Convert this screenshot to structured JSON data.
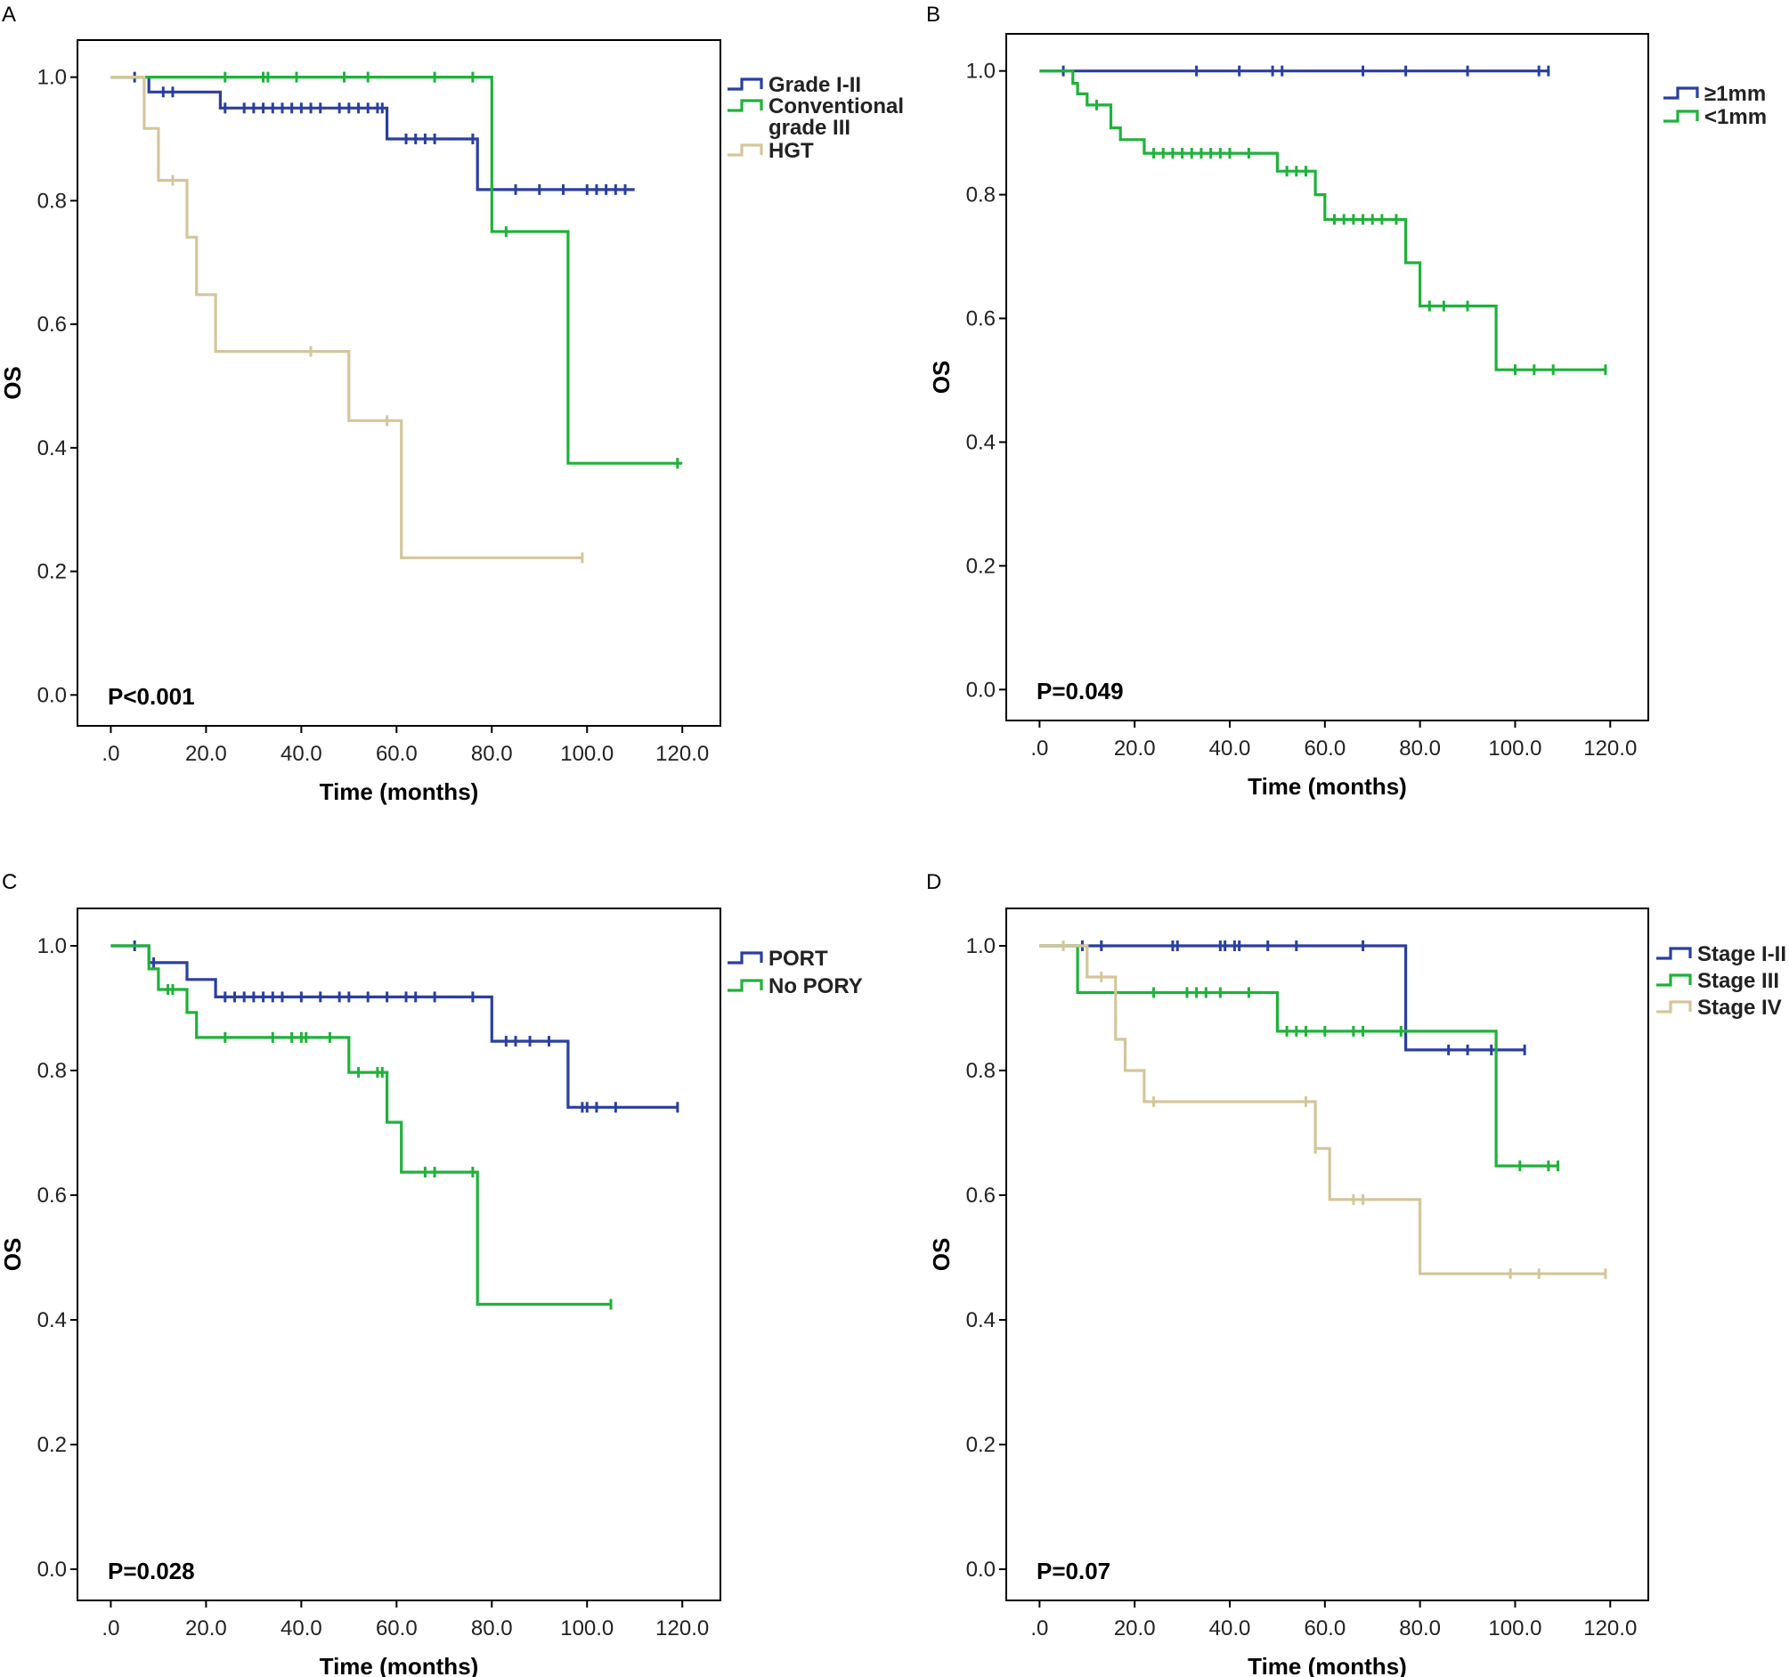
{
  "colors": {
    "blue": "#2a3fa0",
    "green": "#1fb23a",
    "tan": "#d4c69a",
    "frame": "#000000"
  },
  "chart_data": [
    {
      "panel": "A",
      "type": "line",
      "title": "",
      "xlabel": "Time (months)",
      "ylabel": "OS",
      "xlim": [
        -7,
        128
      ],
      "ylim": [
        -0.05,
        1.06
      ],
      "xticks": [
        ".0",
        "20.0",
        "40.0",
        "60.0",
        "80.0",
        "100.0",
        "120.0"
      ],
      "yticks": [
        "0.0",
        "0.2",
        "0.4",
        "0.6",
        "0.8",
        "1.0"
      ],
      "pvalue": "P<0.001",
      "legend_position": "right",
      "series": [
        {
          "name": "Grade I-II",
          "label_lines": [
            "Grade I-II"
          ],
          "color": "blue",
          "steps": [
            [
              0,
              1.0
            ],
            [
              8,
              0.976
            ],
            [
              14,
              0.976
            ],
            [
              23,
              0.95
            ],
            [
              58,
              0.9
            ],
            [
              77,
              0.818
            ],
            [
              110,
              0.818
            ]
          ],
          "censors": [
            5,
            11,
            13,
            24,
            28,
            30,
            32,
            34,
            36,
            38,
            40,
            42,
            44,
            48,
            50,
            52,
            54,
            56,
            57,
            62,
            64,
            66,
            68,
            76,
            85,
            90,
            95,
            100,
            102,
            104,
            106,
            108
          ]
        },
        {
          "name": "Conventional grade III",
          "label_lines": [
            "Conventional",
            "grade III"
          ],
          "color": "green",
          "steps": [
            [
              0,
              1.0
            ],
            [
              80,
              0.75
            ],
            [
              96,
              0.375
            ],
            [
              120,
              0.375
            ]
          ],
          "censors": [
            24,
            32,
            33,
            39,
            49,
            54,
            68,
            76,
            83,
            119
          ]
        },
        {
          "name": "HGT",
          "label_lines": [
            "HGT"
          ],
          "color": "tan",
          "steps": [
            [
              0,
              1.0
            ],
            [
              7,
              0.917
            ],
            [
              10,
              0.833
            ],
            [
              16,
              0.741
            ],
            [
              18,
              0.648
            ],
            [
              22,
              0.556
            ],
            [
              50,
              0.444
            ],
            [
              61,
              0.222
            ],
            [
              99,
              0.222
            ]
          ],
          "censors": [
            13,
            42,
            58,
            99
          ]
        }
      ]
    },
    {
      "panel": "B",
      "type": "line",
      "title": "",
      "xlabel": "Time (months)",
      "ylabel": "OS",
      "xlim": [
        -7,
        128
      ],
      "ylim": [
        -0.05,
        1.06
      ],
      "xticks": [
        ".0",
        "20.0",
        "40.0",
        "60.0",
        "80.0",
        "100.0",
        "120.0"
      ],
      "yticks": [
        "0.0",
        "0.2",
        "0.4",
        "0.6",
        "0.8",
        "1.0"
      ],
      "pvalue": "P=0.049",
      "legend_position": "top-right",
      "series": [
        {
          "name": "≥1mm",
          "label_lines": [
            "≥1mm"
          ],
          "color": "blue",
          "steps": [
            [
              0,
              1.0
            ],
            [
              107,
              1.0
            ]
          ],
          "censors": [
            5,
            33,
            42,
            49,
            51,
            68,
            77,
            90,
            105,
            107
          ]
        },
        {
          "name": "<1mm",
          "label_lines": [
            "<1mm"
          ],
          "color": "green",
          "steps": [
            [
              0,
              1.0
            ],
            [
              7,
              0.98
            ],
            [
              8,
              0.963
            ],
            [
              10,
              0.945
            ],
            [
              15,
              0.908
            ],
            [
              17,
              0.889
            ],
            [
              22,
              0.867
            ],
            [
              50,
              0.838
            ],
            [
              58,
              0.8
            ],
            [
              60,
              0.76
            ],
            [
              77,
              0.69
            ],
            [
              80,
              0.62
            ],
            [
              96,
              0.517
            ],
            [
              119,
              0.517
            ]
          ],
          "censors": [
            12,
            24,
            26,
            28,
            30,
            32,
            34,
            36,
            38,
            40,
            44,
            52,
            54,
            56,
            62,
            64,
            66,
            68,
            70,
            72,
            75,
            82,
            85,
            90,
            100,
            104,
            108,
            119
          ]
        }
      ]
    },
    {
      "panel": "C",
      "type": "line",
      "title": "",
      "xlabel": "Time (months)",
      "ylabel": "OS",
      "xlim": [
        -7,
        128
      ],
      "ylim": [
        -0.05,
        1.06
      ],
      "xticks": [
        ".0",
        "20.0",
        "40.0",
        "60.0",
        "80.0",
        "100.0",
        "120.0"
      ],
      "yticks": [
        "0.0",
        "0.2",
        "0.4",
        "0.6",
        "0.8",
        "1.0"
      ],
      "pvalue": "P=0.028",
      "legend_position": "right",
      "series": [
        {
          "name": "PORT",
          "label_lines": [
            "PORT"
          ],
          "color": "blue",
          "steps": [
            [
              0,
              1.0
            ],
            [
              8,
              0.973
            ],
            [
              16,
              0.946
            ],
            [
              22,
              0.918
            ],
            [
              80,
              0.847
            ],
            [
              96,
              0.741
            ],
            [
              119,
              0.741
            ]
          ],
          "censors": [
            5,
            9,
            24,
            26,
            28,
            30,
            32,
            34,
            36,
            40,
            44,
            48,
            50,
            54,
            58,
            62,
            64,
            68,
            76,
            83,
            85,
            88,
            92,
            99,
            100,
            102,
            106,
            119
          ]
        },
        {
          "name": "No PORY",
          "label_lines": [
            "No PORY"
          ],
          "color": "green",
          "steps": [
            [
              0,
              1.0
            ],
            [
              8,
              0.963
            ],
            [
              10,
              0.93
            ],
            [
              16,
              0.893
            ],
            [
              18,
              0.853
            ],
            [
              50,
              0.797
            ],
            [
              58,
              0.717
            ],
            [
              61,
              0.637
            ],
            [
              77,
              0.425
            ],
            [
              105,
              0.425
            ]
          ],
          "censors": [
            12,
            13,
            24,
            34,
            38,
            40,
            41,
            46,
            52,
            56,
            57,
            66,
            68,
            76,
            105
          ]
        }
      ]
    },
    {
      "panel": "D",
      "type": "line",
      "title": "",
      "xlabel": "Time (months)",
      "ylabel": "OS",
      "xlim": [
        -7,
        128
      ],
      "ylim": [
        -0.05,
        1.06
      ],
      "xticks": [
        ".0",
        "20.0",
        "40.0",
        "60.0",
        "80.0",
        "100.0",
        "120.0"
      ],
      "yticks": [
        "0.0",
        "0.2",
        "0.4",
        "0.6",
        "0.8",
        "1.0"
      ],
      "pvalue": "P=0.07",
      "legend_position": "top-right",
      "series": [
        {
          "name": "Stage I-II",
          "label_lines": [
            "Stage I-II"
          ],
          "color": "blue",
          "steps": [
            [
              0,
              1.0
            ],
            [
              77,
              0.833
            ],
            [
              102,
              0.833
            ]
          ],
          "censors": [
            9,
            13,
            28,
            29,
            38,
            39,
            41,
            42,
            48,
            54,
            68,
            86,
            90,
            95,
            102
          ]
        },
        {
          "name": "Stage III",
          "label_lines": [
            "Stage III"
          ],
          "color": "green",
          "steps": [
            [
              0,
              1.0
            ],
            [
              8,
              0.925
            ],
            [
              50,
              0.863
            ],
            [
              96,
              0.647
            ],
            [
              109,
              0.647
            ]
          ],
          "censors": [
            24,
            31,
            33,
            35,
            38,
            44,
            52,
            54,
            56,
            60,
            66,
            68,
            76,
            101,
            107,
            109
          ]
        },
        {
          "name": "Stage IV",
          "label_lines": [
            "Stage IV"
          ],
          "color": "tan",
          "steps": [
            [
              0,
              1.0
            ],
            [
              10,
              0.95
            ],
            [
              16,
              0.85
            ],
            [
              18,
              0.8
            ],
            [
              22,
              0.75
            ],
            [
              58,
              0.675
            ],
            [
              61,
              0.593
            ],
            [
              80,
              0.474
            ],
            [
              119,
              0.474
            ]
          ],
          "censors": [
            5,
            13,
            24,
            56,
            58,
            66,
            68,
            99,
            105,
            119
          ]
        }
      ]
    }
  ]
}
